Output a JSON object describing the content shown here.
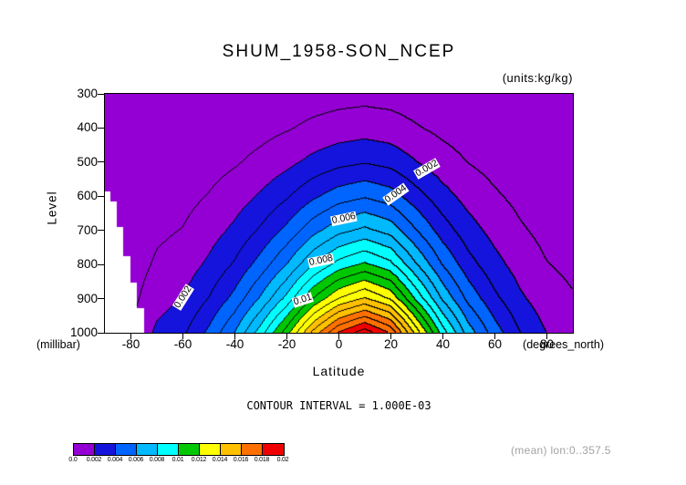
{
  "title": "SHUM_1958-SON_NCEP",
  "units_label": "(units:kg/kg)",
  "y_axis": {
    "label": "Level",
    "unit": "(millibar)",
    "ticks": [
      300,
      400,
      500,
      600,
      700,
      800,
      900,
      1000
    ],
    "range": [
      300,
      1000
    ]
  },
  "x_axis": {
    "label": "Latitude",
    "unit": "(degrees_north)",
    "ticks": [
      -80,
      -60,
      -40,
      -20,
      0,
      20,
      40,
      60,
      80
    ],
    "range": [
      -90,
      90
    ]
  },
  "contour_note": "CONTOUR INTERVAL = 1.000E-03",
  "mean_note": "(mean) lon:0..357.5",
  "colorbar": {
    "labels": [
      "0.0",
      "0.002",
      "0.004",
      "0.006",
      "0.008",
      "0.01",
      "0.012",
      "0.014",
      "0.016",
      "0.018",
      "0.02"
    ],
    "colors": [
      "#9400d3",
      "#1414dc",
      "#0064ff",
      "#00b9ff",
      "#00ffff",
      "#00c800",
      "#ffff00",
      "#ffc000",
      "#ff7000",
      "#f00000"
    ]
  },
  "chart_data": {
    "type": "heatmap",
    "subtype": "filled-contour",
    "title": "SHUM_1958-SON_NCEP",
    "xlabel": "Latitude (degrees_north)",
    "ylabel": "Level (millibar)",
    "units": "kg/kg",
    "xlim": [
      -90,
      90
    ],
    "ylim": [
      1000,
      300
    ],
    "fill_levels": [
      0,
      0.002,
      0.004,
      0.006,
      0.008,
      0.01,
      0.012,
      0.014,
      0.016,
      0.018,
      0.02
    ],
    "line_interval": 0.001,
    "x": [
      -90,
      -80,
      -70,
      -60,
      -50,
      -40,
      -30,
      -20,
      -10,
      0,
      10,
      20,
      30,
      40,
      50,
      60,
      70,
      80,
      90
    ],
    "y": [
      300,
      400,
      500,
      600,
      700,
      800,
      900,
      1000
    ],
    "values": [
      [
        2.8e-05,
        3.5e-05,
        7.7e-05,
        9.8e-05,
        0.000147,
        0.00021,
        0.000298,
        0.000403,
        0.000532,
        0.00063,
        0.000683,
        0.000623,
        0.000473,
        0.000333,
        0.000228,
        0.000158,
        0.000105,
        7e-05,
        5.3e-05
      ],
      [
        6.4e-05,
        8e-05,
        0.000176,
        0.000224,
        0.000336,
        0.00048,
        0.00068,
        0.00092,
        0.001216,
        0.00144,
        0.00156,
        0.001424,
        0.00108,
        0.00076,
        0.00052,
        0.00036,
        0.00024,
        0.00016,
        0.00012
      ],
      [
        0.00012,
        0.00015,
        0.00033,
        0.00042,
        0.00063,
        0.0009,
        0.001275,
        0.001725,
        0.00228,
        0.0027,
        0.002925,
        0.00267,
        0.002025,
        0.001425,
        0.000975,
        0.000675,
        0.00045,
        0.0003,
        0.000225
      ],
      [
        0.0002,
        0.00025,
        0.00055,
        0.0007,
        0.00105,
        0.0015,
        0.002125,
        0.002875,
        0.0038,
        0.0045,
        0.004875,
        0.00445,
        0.003375,
        0.002375,
        0.001625,
        0.001125,
        0.00075,
        0.0005,
        0.000375
      ],
      [
        0.000296,
        0.00037,
        0.000814,
        0.001036,
        0.001554,
        0.00222,
        0.003145,
        0.004255,
        0.005624,
        0.00666,
        0.007215,
        0.006586,
        0.004995,
        0.003515,
        0.002405,
        0.001665,
        0.00111,
        0.00074,
        0.000555
      ],
      [
        0.000416,
        0.00052,
        0.001144,
        0.001456,
        0.002184,
        0.00312,
        0.00442,
        0.00598,
        0.007904,
        0.00936,
        0.01014,
        0.009256,
        0.00702,
        0.00494,
        0.00338,
        0.00234,
        0.00156,
        0.00104,
        0.00078
      ],
      [
        0.000576,
        0.00072,
        0.001584,
        0.002016,
        0.003024,
        0.00432,
        0.00612,
        0.00828,
        0.010944,
        0.01296,
        0.01404,
        0.012816,
        0.00972,
        0.00684,
        0.00468,
        0.00324,
        0.00216,
        0.00144,
        0.00108
      ],
      [
        0.0008,
        0.001,
        0.0022,
        0.0028,
        0.0042,
        0.006,
        0.0085,
        0.0115,
        0.0152,
        0.018,
        0.0195,
        0.0178,
        0.0135,
        0.0095,
        0.0065,
        0.0045,
        0.003,
        0.002,
        0.0015
      ]
    ],
    "mask_steps": [
      {
        "lat_to": -75,
        "top": 930
      },
      {
        "lat_to": -78,
        "top": 855
      },
      {
        "lat_to": -80.5,
        "top": 775
      },
      {
        "lat_to": -83,
        "top": 690
      },
      {
        "lat_to": -85.5,
        "top": 615
      },
      {
        "lat_to": -88,
        "top": 585
      }
    ],
    "contour_labels": [
      {
        "text": "0.002",
        "lat": 34,
        "level": 520,
        "angle": -30
      },
      {
        "text": "0.004",
        "lat": 22,
        "level": 594,
        "angle": -35
      },
      {
        "text": "0.006",
        "lat": 2,
        "level": 666,
        "angle": -12
      },
      {
        "text": "0.008",
        "lat": -7,
        "level": 788,
        "angle": -12
      },
      {
        "text": "0.01",
        "lat": -14,
        "level": 903,
        "angle": -18
      },
      {
        "text": "0.002",
        "lat": -60,
        "level": 895,
        "angle": -58
      }
    ]
  }
}
